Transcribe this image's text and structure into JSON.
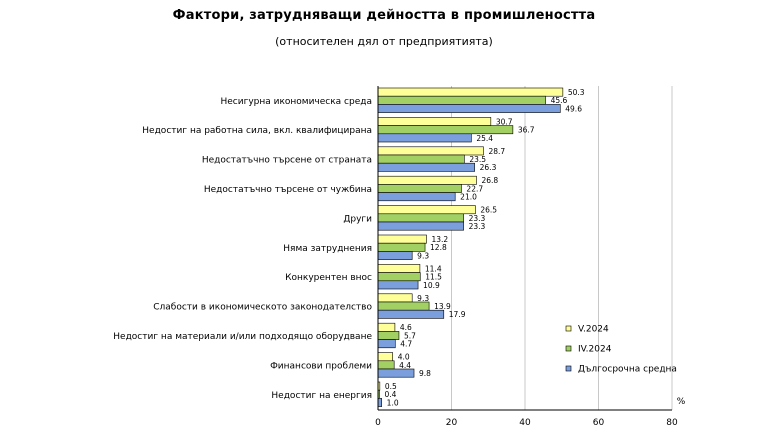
{
  "chart_data": {
    "type": "bar",
    "orientation": "horizontal",
    "title": "Фактори, затрудняващи дейността в промишлеността",
    "subtitle": "(относителен дял от предприятията)",
    "xlabel": "%",
    "xlim": [
      0,
      80
    ],
    "xticks": [
      "0",
      "20",
      "40",
      "60",
      "80"
    ],
    "legend_position": "bottom-right",
    "categories": [
      "Несигурна икономическа среда",
      "Недостиг на работна сила, вкл. квалифицирана",
      "Недостатъчно търсене от страната",
      "Недостатъчно търсене от чужбина",
      "Други",
      "Няма затруднения",
      "Конкурентен внос",
      "Слабости в икономическото законодателство",
      "Недостиг на материали и/или подходящо оборудване",
      "Финансови проблеми",
      "Недостиг на енергия"
    ],
    "series": [
      {
        "name": "V.2024",
        "color": "#ffff99",
        "values": [
          50.3,
          30.7,
          28.7,
          26.8,
          26.5,
          13.2,
          11.4,
          9.3,
          4.6,
          4.0,
          0.5
        ],
        "labels": [
          "50.3",
          "30.7",
          "28.7",
          "26.8",
          "26.5",
          "13.2",
          "11.4",
          "9.3",
          "4.6",
          "4.0",
          "0.5"
        ]
      },
      {
        "name": "IV.2024",
        "color": "#a3d063",
        "values": [
          45.6,
          36.7,
          23.5,
          22.7,
          23.3,
          12.8,
          11.5,
          13.9,
          5.7,
          4.4,
          0.4
        ],
        "labels": [
          "45.6",
          "36.7",
          "23.5",
          "22.7",
          "23.3",
          "12.8",
          "11.5",
          "13.9",
          "5.7",
          "4.4",
          "0.4"
        ]
      },
      {
        "name": "Дългосрочна средна",
        "color": "#7b9fdc",
        "values": [
          49.6,
          25.4,
          26.3,
          21.0,
          23.3,
          9.3,
          10.9,
          17.9,
          4.7,
          9.8,
          1.0
        ],
        "labels": [
          "49.6",
          "25.4",
          "26.3",
          "21.0",
          "23.3",
          "9.3",
          "10.9",
          "17.9",
          "4.7",
          "9.8",
          "1.0"
        ]
      }
    ]
  }
}
